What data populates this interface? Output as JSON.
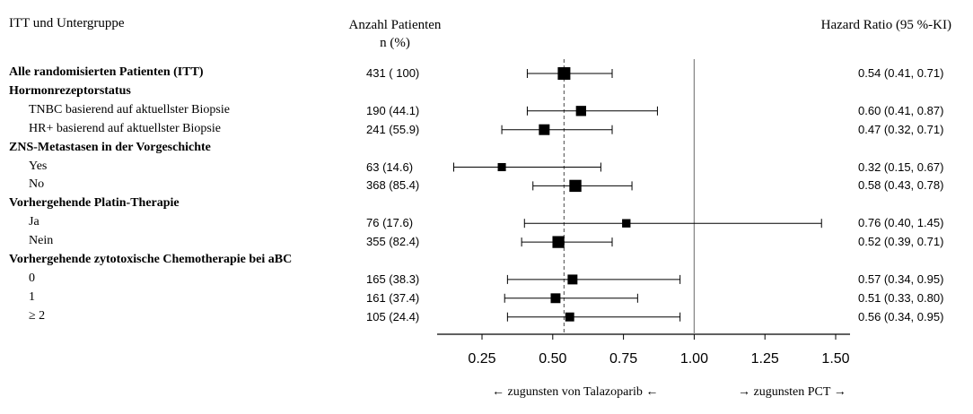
{
  "header": {
    "left": "ITT und Untergruppe",
    "middle_line1": "Anzahl Patienten",
    "middle_line2": "n (%)",
    "right": "Hazard Ratio (95 %-KI)"
  },
  "footer": {
    "left": "← zugunsten von Talazoparib ←",
    "right": "→ zugunsten  PCT →"
  },
  "chart_data": {
    "type": "forest",
    "xlim": [
      0.1,
      1.6
    ],
    "xticks": [
      "0.25",
      "0.50",
      "0.75",
      "1.00",
      "1.25",
      "1.50"
    ],
    "tick_values": [
      0.25,
      0.5,
      0.75,
      1.0,
      1.25,
      1.5
    ],
    "reference_line": 1.0,
    "overall_line": 0.54,
    "rows": [
      {
        "label": "Alle randomisierten  Patienten (ITT)",
        "bold": true,
        "n": "431 ( 100)",
        "hr_text": "0.54 (0.41, 0.71)",
        "hr": 0.54,
        "lo": 0.41,
        "hi": 0.71,
        "weight": 431
      },
      {
        "label": "Hormonrezeptorstatus",
        "bold": true
      },
      {
        "label": "TNBC basierend auf aktuellster Biopsie",
        "bold": false,
        "n": "190 (44.1)",
        "hr_text": "0.60 (0.41, 0.87)",
        "hr": 0.6,
        "lo": 0.41,
        "hi": 0.87,
        "weight": 190
      },
      {
        "label": "HR+ basierend auf aktuellster Biopsie",
        "bold": false,
        "n": "241 (55.9)",
        "hr_text": "0.47 (0.32, 0.71)",
        "hr": 0.47,
        "lo": 0.32,
        "hi": 0.71,
        "weight": 241
      },
      {
        "label": "ZNS-Metastasen  in der Vorgeschichte",
        "bold": true
      },
      {
        "label": "Yes",
        "bold": false,
        "n": "63 (14.6)",
        "hr_text": "0.32 (0.15, 0.67)",
        "hr": 0.32,
        "lo": 0.15,
        "hi": 0.67,
        "weight": 63
      },
      {
        "label": "No",
        "bold": false,
        "n": "368 (85.4)",
        "hr_text": "0.58 (0.43, 0.78)",
        "hr": 0.58,
        "lo": 0.43,
        "hi": 0.78,
        "weight": 368
      },
      {
        "label": "Vorhergehende Platin-Therapie",
        "bold": true
      },
      {
        "label": "Ja",
        "bold": false,
        "n": "76 (17.6)",
        "hr_text": "0.76 (0.40, 1.45)",
        "hr": 0.76,
        "lo": 0.4,
        "hi": 1.45,
        "weight": 76
      },
      {
        "label": "Nein",
        "bold": false,
        "n": "355 (82.4)",
        "hr_text": "0.52 (0.39, 0.71)",
        "hr": 0.52,
        "lo": 0.39,
        "hi": 0.71,
        "weight": 355
      },
      {
        "label": "Vorhergehende  zytotoxische  Chemotherapie  bei aBC",
        "bold": true
      },
      {
        "label": "0",
        "bold": false,
        "n": "165 (38.3)",
        "hr_text": "0.57 (0.34, 0.95)",
        "hr": 0.57,
        "lo": 0.34,
        "hi": 0.95,
        "weight": 165
      },
      {
        "label": "1",
        "bold": false,
        "n": "161 (37.4)",
        "hr_text": "0.51 (0.33, 0.80)",
        "hr": 0.51,
        "lo": 0.33,
        "hi": 0.8,
        "weight": 161
      },
      {
        "label": "≥ 2",
        "bold": false,
        "n": "105 (24.4)",
        "hr_text": "0.56 (0.34, 0.95)",
        "hr": 0.56,
        "lo": 0.34,
        "hi": 0.95,
        "weight": 105
      }
    ]
  }
}
